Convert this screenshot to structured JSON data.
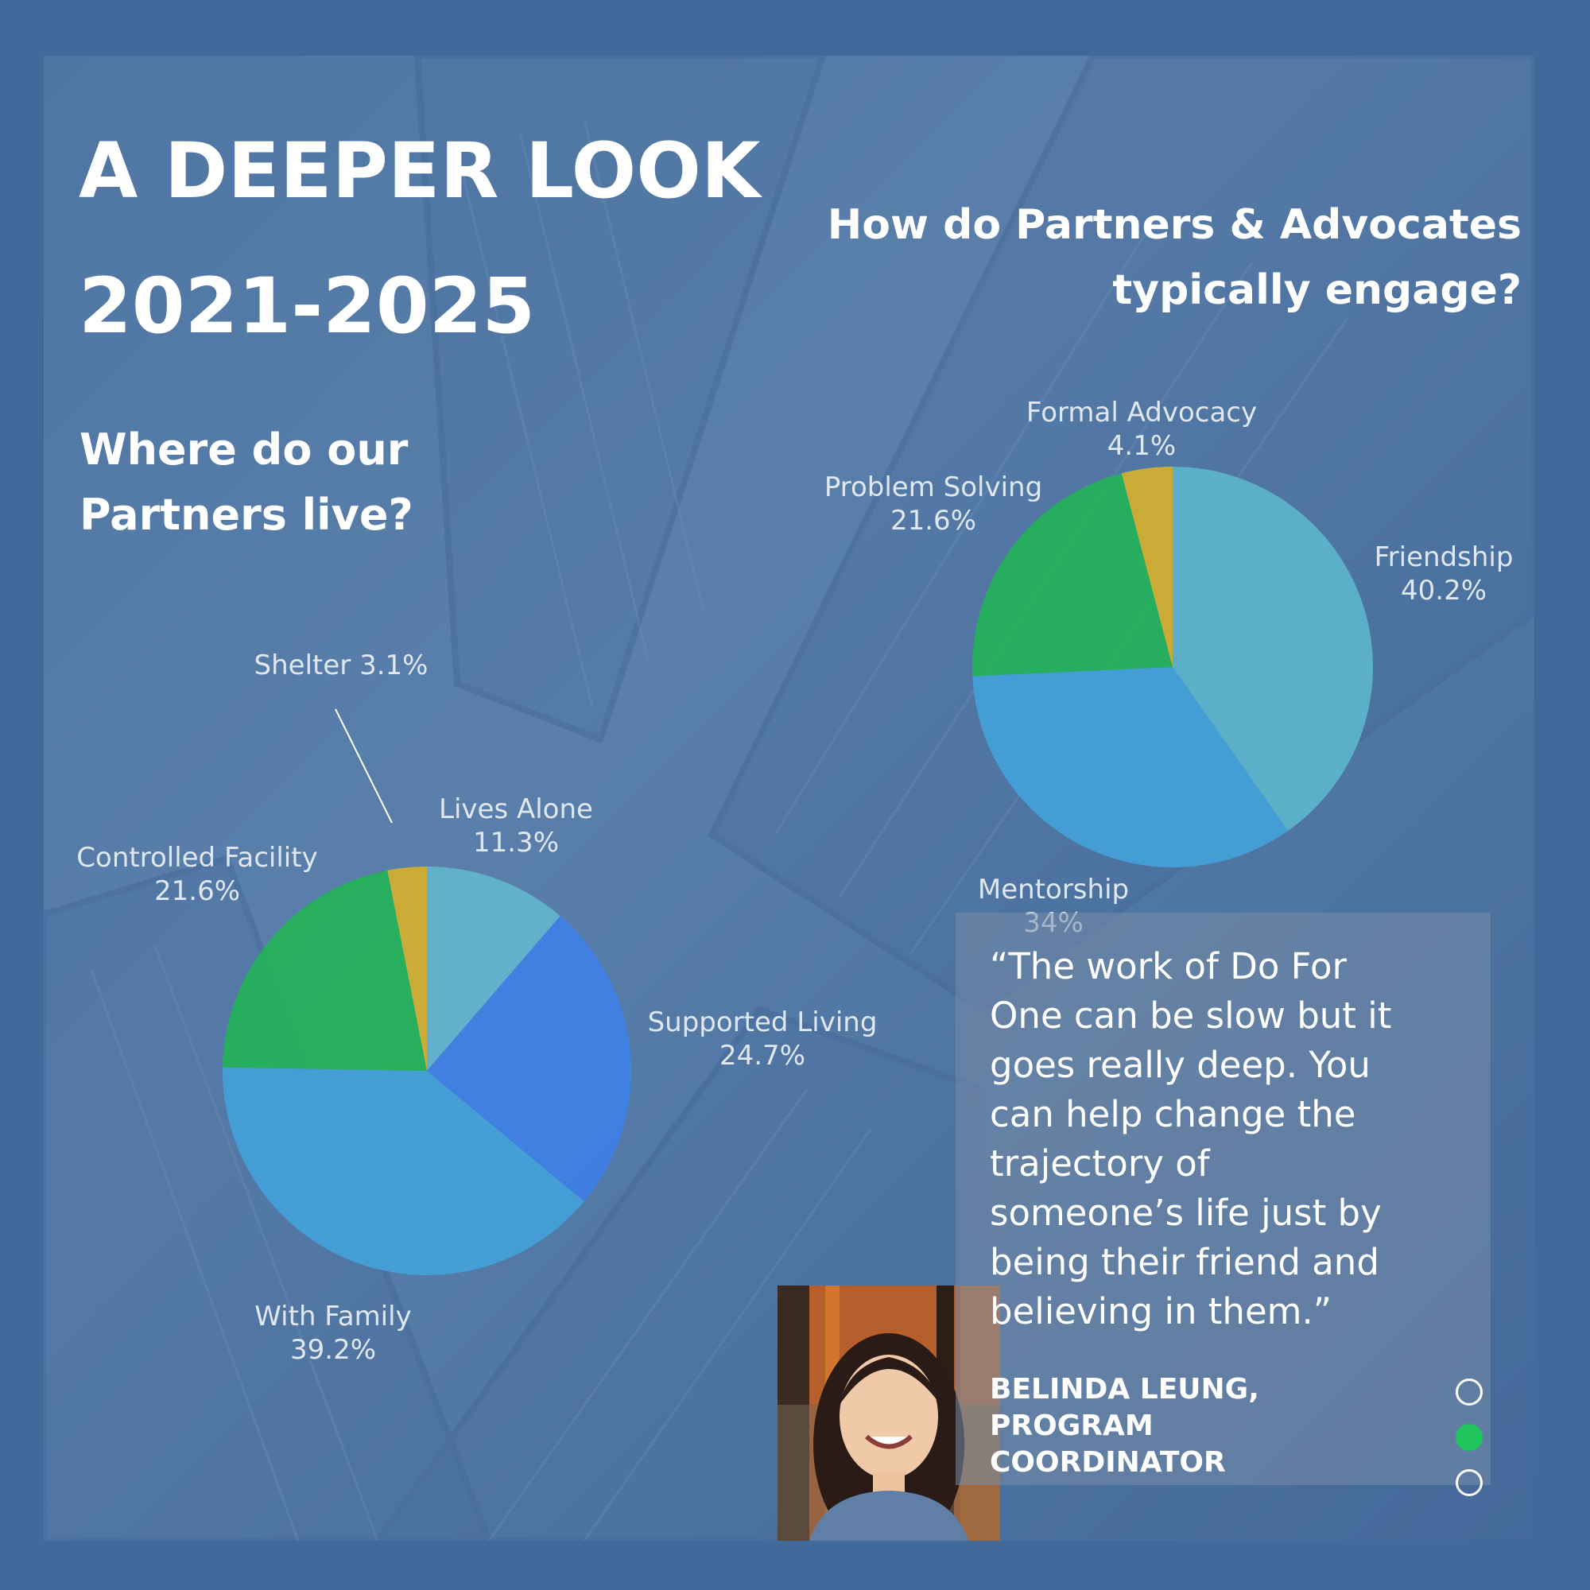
{
  "header": {
    "title_line1": "A DEEPER LOOK",
    "title_line2": "2021-2025"
  },
  "left_question": {
    "line1": "Where do our",
    "line2": "Partners live?"
  },
  "right_question": {
    "line1": "How do Partners & Advocates",
    "line2": "typically engage?"
  },
  "chart_data": [
    {
      "type": "pie",
      "title": "Where do our Partners live?",
      "slices": [
        {
          "label": "Lives Alone",
          "value": 11.3,
          "value_text": "11.3%",
          "color": "#62b5cf"
        },
        {
          "label": "Supported Living",
          "value": 24.7,
          "value_text": "24.7%",
          "color": "#3f80e6"
        },
        {
          "label": "With Family",
          "value": 39.2,
          "value_text": "39.2%",
          "color": "#44a1da"
        },
        {
          "label": "Controlled Facility",
          "value": 21.6,
          "value_text": "21.6%",
          "color": "#23b358"
        },
        {
          "label": "Shelter",
          "value": 3.1,
          "value_text": "3.1%",
          "color": "#d5b02c"
        }
      ]
    },
    {
      "type": "pie",
      "title": "How do Partners & Advocates typically engage?",
      "slices": [
        {
          "label": "Friendship",
          "value": 40.2,
          "value_text": "40.2%",
          "color": "#5cb4cb"
        },
        {
          "label": "Mentorship",
          "value": 34,
          "value_text": "34%",
          "color": "#44a1da"
        },
        {
          "label": "Problem Solving",
          "value": 21.6,
          "value_text": "21.6%",
          "color": "#23b358"
        },
        {
          "label": "Formal Advocacy",
          "value": 4.1,
          "value_text": "4.1%",
          "color": "#d5b02c"
        }
      ]
    }
  ],
  "quote": {
    "lines": [
      "“The work of Do For",
      "One can be slow but it",
      "goes really deep. You",
      "can help change the",
      "trajectory of",
      "someone’s life just by",
      "being their friend and",
      "believing in them.”"
    ],
    "author_line1": "BELINDA LEUNG, PROGRAM",
    "author_line2": "COORDINATOR"
  },
  "carousel": {
    "slide_count": 3,
    "active_index": 1,
    "active_color": "#1fc45a",
    "inactive_color": "#ffffff"
  }
}
